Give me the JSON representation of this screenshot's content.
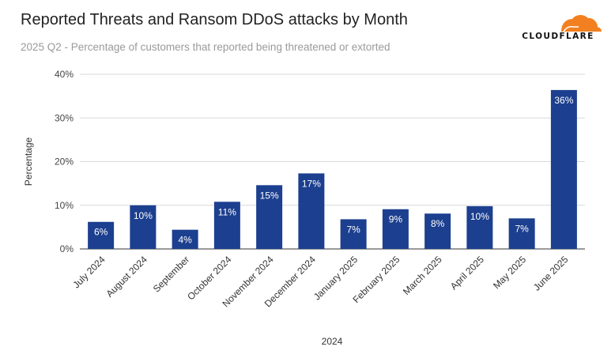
{
  "header": {
    "title": "Reported Threats and Ransom DDoS attacks by Month",
    "subtitle": "2025 Q2 - Percentage of customers that reported being threatened or extorted"
  },
  "logo": {
    "text": "CLOUDFLARE",
    "icon": "cloud-icon",
    "color": "#f38020"
  },
  "chart_data": {
    "type": "bar",
    "title": "Reported Threats and Ransom DDoS attacks by Month",
    "subtitle": "2025 Q2 - Percentage of customers that reported being threatened or extorted",
    "xlabel": "2024",
    "ylabel": "Percentage",
    "categories": [
      "July 2024",
      "August 2024",
      "September",
      "October 2024",
      "November 2024",
      "December 2024",
      "January 2025",
      "February 2025",
      "March 2025",
      "April 2025",
      "May 2025",
      "June 2025"
    ],
    "values": [
      6.2,
      10.0,
      4.4,
      10.8,
      14.6,
      17.3,
      6.8,
      9.1,
      8.1,
      9.8,
      7.0,
      36.4
    ],
    "data_labels": [
      "6%",
      "10%",
      "4%",
      "11%",
      "15%",
      "17%",
      "7%",
      "9%",
      "8%",
      "10%",
      "7%",
      "36%"
    ],
    "yticks": [
      0,
      10,
      20,
      30,
      40
    ],
    "ytick_labels": [
      "0%",
      "10%",
      "20%",
      "30%",
      "40%"
    ],
    "ylim": [
      0,
      40
    ],
    "grid": true,
    "bar_color": "#1c3f8f"
  }
}
